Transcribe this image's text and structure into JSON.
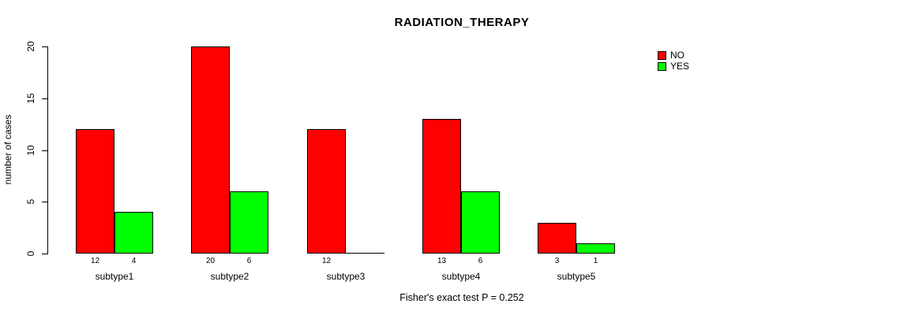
{
  "chart_data": {
    "type": "bar",
    "title": "RADIATION_THERAPY",
    "xlabel": "",
    "ylabel": "number of cases",
    "categories": [
      "subtype1",
      "subtype2",
      "subtype3",
      "subtype4",
      "subtype5"
    ],
    "series": [
      {
        "name": "NO",
        "color": "#FF0000",
        "values": [
          12,
          20,
          12,
          13,
          3
        ],
        "value_labels": [
          "12",
          "20",
          "12",
          "13",
          "3"
        ]
      },
      {
        "name": "YES",
        "color": "#00FF00",
        "values": [
          4,
          6,
          0,
          6,
          1
        ],
        "value_labels": [
          "4",
          "6",
          "",
          "6",
          "1"
        ]
      }
    ],
    "yticks": [
      0,
      5,
      10,
      15,
      20
    ],
    "ylim": [
      0,
      20
    ],
    "grid": false,
    "legend_position": "right",
    "annotation": "Fisher's exact test P = 0.252",
    "background_color": "#FFFFFF",
    "axis_color": "#000000"
  }
}
